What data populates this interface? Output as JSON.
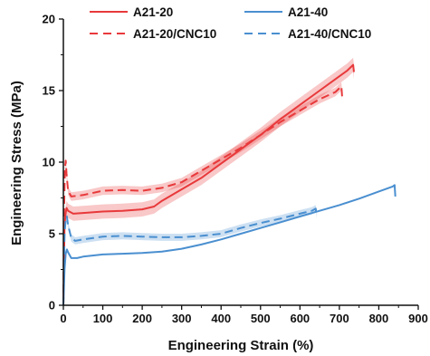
{
  "chart_data": {
    "type": "line",
    "xlabel": "Engineering Strain (%)",
    "ylabel": "Engineering Stress (MPa)",
    "xlim": [
      0,
      900
    ],
    "ylim": [
      0,
      20
    ],
    "xticks": [
      "0",
      "100",
      "200",
      "300",
      "400",
      "500",
      "600",
      "700",
      "800",
      "900"
    ],
    "yticks": [
      "0",
      "5",
      "10",
      "15",
      "20"
    ],
    "grid": false,
    "legend_position": "top",
    "series": [
      {
        "name": "A21-20",
        "color": "#e8393b",
        "dash": "solid",
        "band": 0.5,
        "points": [
          [
            0,
            0
          ],
          [
            3,
            5.5
          ],
          [
            5,
            6.3
          ],
          [
            8,
            6.8
          ],
          [
            12,
            6.6
          ],
          [
            25,
            6.4
          ],
          [
            50,
            6.45
          ],
          [
            100,
            6.55
          ],
          [
            150,
            6.6
          ],
          [
            200,
            6.7
          ],
          [
            230,
            6.9
          ],
          [
            250,
            7.3
          ],
          [
            300,
            8.1
          ],
          [
            350,
            8.9
          ],
          [
            400,
            9.9
          ],
          [
            450,
            10.9
          ],
          [
            500,
            11.9
          ],
          [
            550,
            13.0
          ],
          [
            600,
            14.0
          ],
          [
            650,
            15.0
          ],
          [
            700,
            16.0
          ],
          [
            720,
            16.4
          ],
          [
            735,
            16.8
          ],
          [
            737,
            16.3
          ]
        ]
      },
      {
        "name": "A21-20/CNC10",
        "color": "#e8393b",
        "dash": "dashed",
        "band": 0.3,
        "points": [
          [
            0,
            0
          ],
          [
            2,
            7.0
          ],
          [
            4,
            9.5
          ],
          [
            6,
            10.1
          ],
          [
            8,
            9.2
          ],
          [
            12,
            8.0
          ],
          [
            20,
            7.6
          ],
          [
            50,
            7.7
          ],
          [
            100,
            8.0
          ],
          [
            150,
            8.05
          ],
          [
            200,
            8.0
          ],
          [
            250,
            8.2
          ],
          [
            300,
            8.6
          ],
          [
            350,
            9.4
          ],
          [
            400,
            10.2
          ],
          [
            450,
            11.0
          ],
          [
            500,
            11.9
          ],
          [
            550,
            12.8
          ],
          [
            600,
            13.6
          ],
          [
            650,
            14.4
          ],
          [
            690,
            14.9
          ],
          [
            705,
            15.3
          ],
          [
            707,
            14.6
          ]
        ]
      },
      {
        "name": "A21-40",
        "color": "#4a8fd0",
        "dash": "solid",
        "band": 0.0,
        "points": [
          [
            0,
            0
          ],
          [
            3,
            2.5
          ],
          [
            6,
            3.6
          ],
          [
            9,
            3.9
          ],
          [
            12,
            3.7
          ],
          [
            20,
            3.3
          ],
          [
            35,
            3.3
          ],
          [
            50,
            3.4
          ],
          [
            100,
            3.55
          ],
          [
            150,
            3.6
          ],
          [
            200,
            3.65
          ],
          [
            250,
            3.75
          ],
          [
            300,
            3.95
          ],
          [
            350,
            4.25
          ],
          [
            400,
            4.6
          ],
          [
            450,
            5.0
          ],
          [
            500,
            5.4
          ],
          [
            550,
            5.8
          ],
          [
            600,
            6.2
          ],
          [
            650,
            6.6
          ],
          [
            700,
            7.0
          ],
          [
            750,
            7.45
          ],
          [
            800,
            7.95
          ],
          [
            835,
            8.3
          ],
          [
            840,
            8.4
          ],
          [
            842,
            7.6
          ]
        ]
      },
      {
        "name": "A21-40/CNC10",
        "color": "#4a8fd0",
        "dash": "dashed",
        "band": 0.25,
        "points": [
          [
            0,
            0
          ],
          [
            3,
            5.0
          ],
          [
            6,
            6.0
          ],
          [
            9,
            6.2
          ],
          [
            12,
            5.6
          ],
          [
            20,
            4.7
          ],
          [
            30,
            4.5
          ],
          [
            50,
            4.6
          ],
          [
            100,
            4.8
          ],
          [
            150,
            4.85
          ],
          [
            200,
            4.8
          ],
          [
            250,
            4.75
          ],
          [
            300,
            4.75
          ],
          [
            350,
            4.85
          ],
          [
            400,
            5.0
          ],
          [
            450,
            5.4
          ],
          [
            500,
            5.75
          ],
          [
            550,
            6.05
          ],
          [
            600,
            6.4
          ],
          [
            630,
            6.6
          ],
          [
            640,
            6.75
          ],
          [
            642,
            6.3
          ]
        ]
      }
    ]
  }
}
